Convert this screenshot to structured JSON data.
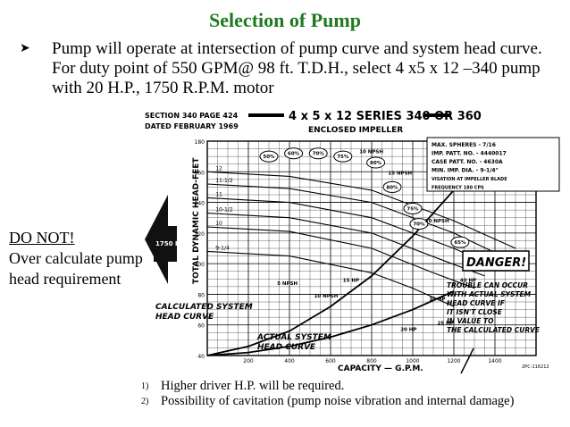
{
  "slide": {
    "title": "Selection of Pump",
    "bullet": {
      "icon": "arrow-bullet-icon",
      "text": "Pump will operate at intersection of pump curve and system head curve. For duty point of 550 GPM@ 98 ft. T.D.H., select 4 x5 x 12 –340 pump with 20 H.P., 1750 R.P.M. motor"
    },
    "side_note": {
      "heading": "DO NOT!",
      "body": "Over calculate pump head requirement"
    },
    "notes": [
      {
        "num": "1)",
        "text": "Higher driver H.P. will be required."
      },
      {
        "num": "2)",
        "text": "Possibility of cavitation  (pump noise vibration and internal damage)"
      }
    ]
  },
  "chart": {
    "section_line": "SECTION 340 PAGE  424",
    "dated_line": "DATED FEBRUARY 1969",
    "series_title": "4 x 5 x 12 SERIES 340 OR  360",
    "subtitle": "ENCLOSED IMPELLER",
    "ylabel": "TOTAL DYNAMIC HEAD-FEET",
    "xlabel": "CAPACITY — G.P.M.",
    "rpm_badge": "1750 R.P.M.",
    "info_lines": [
      "MAX. SPHERES - 7/16",
      "IMP. PATT. NO. - 4440017",
      "CASE PATT. NO. - 4630A",
      "MIN. IMP. DIA. - 9-1/4\"",
      "VISATION AT IMPELLER BLADE",
      "FREQUENCY 180 CPS"
    ],
    "annotations": {
      "danger": "DANGER!",
      "trouble": "TROUBLE CAN OCCUR WITH ACTUAL SYSTEM HEAD CURVE IF IT ISN'T CLOSE IN VALUE TO THE CALCULATED CURVE",
      "calculated": "CALCULATED SYSTEM HEAD CURVE",
      "actual": "ACTUAL SYSTEM HEAD CURVE"
    },
    "code": "2PC-116212"
  },
  "chart_data": {
    "type": "line",
    "xlim": [
      0,
      1600
    ],
    "ylim": [
      40,
      180
    ],
    "x_ticks": [
      "200",
      "400",
      "600",
      "800",
      "1000",
      "1200",
      "1400"
    ],
    "y_ticks": [
      "40",
      "60",
      "80",
      "100",
      "120",
      "140",
      "160",
      "180"
    ],
    "impeller_labels": [
      "12",
      "11-1/2",
      "11",
      "10-1/2",
      "10",
      "9-1/4"
    ],
    "efficiency_labels": [
      "50%",
      "60%",
      "70%",
      "75%",
      "80%",
      "80%",
      "75%",
      "70%",
      "65%"
    ],
    "npsh_labels": [
      "10 NPSH",
      "15 NPSH",
      "20 NPSH",
      "5 NPSH",
      "10 NPSH"
    ],
    "hp_labels": [
      "15 HP",
      "20 HP",
      "25 HP",
      "30 HP",
      "40 HP",
      "50 HP"
    ],
    "grid": true,
    "series": [
      {
        "x": [
          0,
          400,
          800,
          1200,
          1500
        ],
        "y": [
          160,
          157,
          148,
          128,
          110
        ]
      },
      {
        "x": [
          0,
          400,
          800,
          1200,
          1450
        ],
        "y": [
          152,
          149,
          140,
          120,
          104
        ]
      },
      {
        "x": [
          0,
          400,
          800,
          1200,
          1400
        ],
        "y": [
          143,
          140,
          130,
          110,
          98
        ]
      },
      {
        "x": [
          0,
          400,
          800,
          1150,
          1350
        ],
        "y": [
          133,
          130,
          120,
          102,
          92
        ]
      },
      {
        "x": [
          0,
          400,
          800,
          1100,
          1300
        ],
        "y": [
          124,
          121,
          110,
          94,
          84
        ]
      },
      {
        "x": [
          0,
          400,
          800,
          1000,
          1200
        ],
        "y": [
          108,
          105,
          94,
          84,
          72
        ]
      },
      {
        "x": [
          0,
          200,
          400,
          600,
          800,
          1000,
          1200
        ],
        "y": [
          40,
          46,
          56,
          72,
          92,
          118,
          148
        ]
      },
      {
        "x": [
          0,
          200,
          400,
          600,
          800,
          1000,
          1200
        ],
        "y": [
          40,
          42,
          46,
          52,
          60,
          70,
          82
        ]
      }
    ]
  }
}
